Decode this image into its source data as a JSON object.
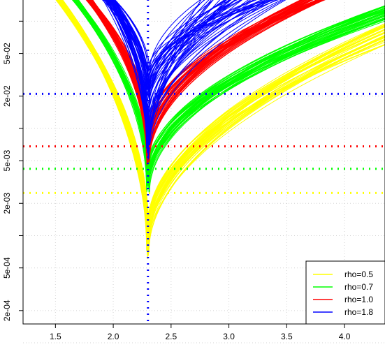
{
  "chart_data": {
    "type": "line",
    "x_axis": {
      "range": [
        1.22,
        4.35
      ],
      "ticks": [
        1.5,
        2.0,
        2.5,
        3.0,
        3.5,
        4.0
      ],
      "tick_labels": [
        "1.5",
        "2.0",
        "2.5",
        "3.0",
        "3.5",
        "4.0"
      ]
    },
    "y_axis": {
      "scale": "log10",
      "range": [
        0.00015,
        0.16
      ],
      "ticks": [
        0.0002,
        0.0005,
        0.002,
        0.005,
        0.02,
        0.05
      ],
      "tick_labels": [
        "2e-04",
        "5e-04",
        "2e-03",
        "5e-03",
        "2e-02",
        "5e-02"
      ],
      "minor_ticks": [
        0.0001,
        0.001,
        0.01,
        0.1
      ]
    },
    "grid": true,
    "legend_position": "bottom-right",
    "vertical_reference": {
      "x": 2.3,
      "color": "#0000ff"
    },
    "series": [
      {
        "name": "rho=0.5",
        "color": "#ffff00",
        "curves": 40,
        "threshold": 0.0025,
        "min_range": [
          0.0006,
          0.0013
        ],
        "left_x": [
          1.5,
          1.56
        ],
        "left_y": 0.16,
        "right_x": 4.35,
        "right_y": [
          0.06,
          0.095
        ]
      },
      {
        "name": "rho=0.7",
        "color": "#00ff00",
        "curves": 40,
        "threshold": 0.0042,
        "min_range": [
          0.0025,
          0.004
        ],
        "left_x": [
          1.64,
          1.7
        ],
        "left_y": 0.16,
        "right_x": 4.35,
        "right_y": [
          0.1,
          0.14
        ]
      },
      {
        "name": "rho=1.0",
        "color": "#ff0000",
        "curves": 40,
        "threshold": 0.0068,
        "min_range": [
          0.0045,
          0.01
        ],
        "left_x": [
          1.76,
          1.82
        ],
        "left_y": 0.16,
        "right_x": [
          3.62,
          3.85
        ],
        "right_y": 0.16
      },
      {
        "name": "rho=1.8",
        "color": "#0000ff",
        "curves": 50,
        "threshold": 0.021,
        "min_range": [
          0.005,
          0.035
        ],
        "left_x": [
          1.9,
          2.02
        ],
        "left_y": 0.16,
        "right_x": [
          2.75,
          3.5
        ],
        "right_y": 0.16
      }
    ]
  },
  "legend": [
    {
      "label": "rho=0.5",
      "color": "#ffff00"
    },
    {
      "label": "rho=0.7",
      "color": "#00ff00"
    },
    {
      "label": "rho=1.0",
      "color": "#ff0000"
    },
    {
      "label": "rho=1.8",
      "color": "#0000ff"
    }
  ]
}
